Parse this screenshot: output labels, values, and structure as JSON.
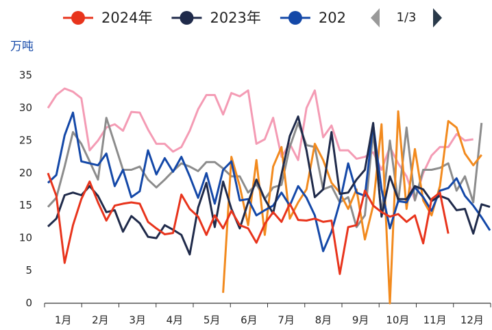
{
  "chart_data": {
    "type": "line",
    "y_unit": "万吨",
    "legend_page": "1/3",
    "months": [
      "1月",
      "2月",
      "3月",
      "4月",
      "5月",
      "6月",
      "7月",
      "8月",
      "9月",
      "10月",
      "11月",
      "12月"
    ],
    "xlim": [
      0,
      53
    ],
    "ylim": [
      0,
      35
    ],
    "yticks": [
      0,
      5,
      10,
      15,
      20,
      25,
      30,
      35
    ],
    "legend": "top",
    "series": [
      {
        "color": "#f49bb4",
        "values": [
          30,
          32,
          33,
          32.5,
          31.5,
          23.5,
          25,
          27,
          27.5,
          26.5,
          29.4,
          29.3,
          26.7,
          24.5,
          24.5,
          23.3,
          24,
          26.5,
          29.8,
          32,
          32,
          29,
          32.3,
          31.8,
          32.7,
          24.5,
          25.2,
          28.5,
          22.5,
          24.5,
          22,
          30,
          32.7,
          25.5,
          27.3,
          23.5,
          23.5,
          22.2,
          22.5,
          23.2,
          20.5,
          24,
          21.5,
          19.5,
          15.8,
          20,
          22.7,
          24,
          24,
          26,
          25,
          25.2
        ]
      },
      {
        "color": "#8c8c8c",
        "values": [
          14.8,
          16.2,
          21,
          26.3,
          24.5,
          21.8,
          19,
          28.5,
          24.5,
          20.5,
          20.5,
          21,
          19,
          17.8,
          19,
          20.3,
          21.5,
          21,
          20.3,
          21.7,
          21.7,
          20.7,
          19.5,
          19.5,
          17,
          18.3,
          16,
          17.8,
          18.2,
          24,
          27.7,
          24.3,
          24,
          17.5,
          18,
          15.5,
          16.3,
          11.7,
          13.5,
          26.3,
          13.7,
          25,
          15.5,
          27,
          15.8,
          20.5,
          20.5,
          20.8,
          21.5,
          17.3,
          19.5,
          15.5,
          27.7
        ]
      },
      {
        "color": "#f28a1e",
        "values": [
          null,
          null,
          null,
          null,
          null,
          null,
          null,
          null,
          null,
          null,
          null,
          null,
          null,
          null,
          null,
          null,
          null,
          null,
          null,
          null,
          null,
          1.6,
          22.5,
          18,
          12,
          22,
          10.5,
          21,
          24,
          13,
          15.5,
          17.5,
          24.5,
          22,
          18.5,
          17,
          14.5,
          17.5,
          9.8,
          15,
          27.5,
          0,
          29.5,
          14.5,
          23.7,
          15.8,
          13.5,
          18,
          28,
          27,
          23,
          21.2,
          22.8
        ]
      },
      {
        "name": "202",
        "color": "#1448a8",
        "values": [
          18.5,
          19.7,
          25.8,
          29.3,
          21.8,
          21.5,
          21.2,
          23,
          18,
          20.5,
          16.3,
          17.2,
          23.5,
          19.8,
          22.3,
          20.2,
          22.5,
          19.5,
          16.2,
          20,
          15.3,
          20.5,
          21.8,
          15.8,
          16,
          13.5,
          14.3,
          15,
          17,
          15,
          18,
          16.2,
          13.5,
          8,
          11,
          15.5,
          21.5,
          17,
          16.5,
          27.5,
          17.5,
          11.5,
          15.7,
          15.5,
          17.8,
          16.3,
          14.2,
          17.3,
          17.7,
          19.2,
          16.5,
          15,
          13.2,
          11.2
        ]
      },
      {
        "name": "2023年",
        "color": "#1f2a4a",
        "values": [
          11.8,
          13,
          16.6,
          17,
          16.6,
          18,
          16.5,
          14,
          14.3,
          11,
          13.4,
          12.3,
          10.2,
          10,
          12,
          11.3,
          10.5,
          7.5,
          14.7,
          18.5,
          11.7,
          18.7,
          14.5,
          11.5,
          15.5,
          19,
          16,
          13.8,
          19.8,
          25.7,
          28.7,
          23.5,
          16.3,
          17.5,
          26.3,
          16.8,
          17,
          19,
          20.5,
          27.7,
          13.3,
          19.5,
          16,
          16,
          18,
          17.5,
          15.7,
          16.5,
          16,
          14.3,
          14.5,
          10.7,
          15.2,
          14.8
        ]
      },
      {
        "name": "2024年",
        "color": "#e8341c",
        "values": [
          20,
          16.5,
          6.2,
          12,
          16,
          18.7,
          15.5,
          12.7,
          15,
          15.3,
          15.5,
          15.3,
          12.5,
          11.5,
          10.6,
          10.8,
          16.7,
          14.5,
          13.3,
          10.5,
          13.5,
          11.5,
          14.2,
          12,
          11.5,
          9.3,
          12.2,
          14,
          12.5,
          15.3,
          12.8,
          12.7,
          13,
          12.5,
          12.7,
          4.5,
          11.7,
          12,
          17.3,
          15,
          14,
          13.3,
          13.7,
          12.5,
          13.5,
          9.2,
          16,
          17,
          10.7
        ]
      }
    ]
  }
}
